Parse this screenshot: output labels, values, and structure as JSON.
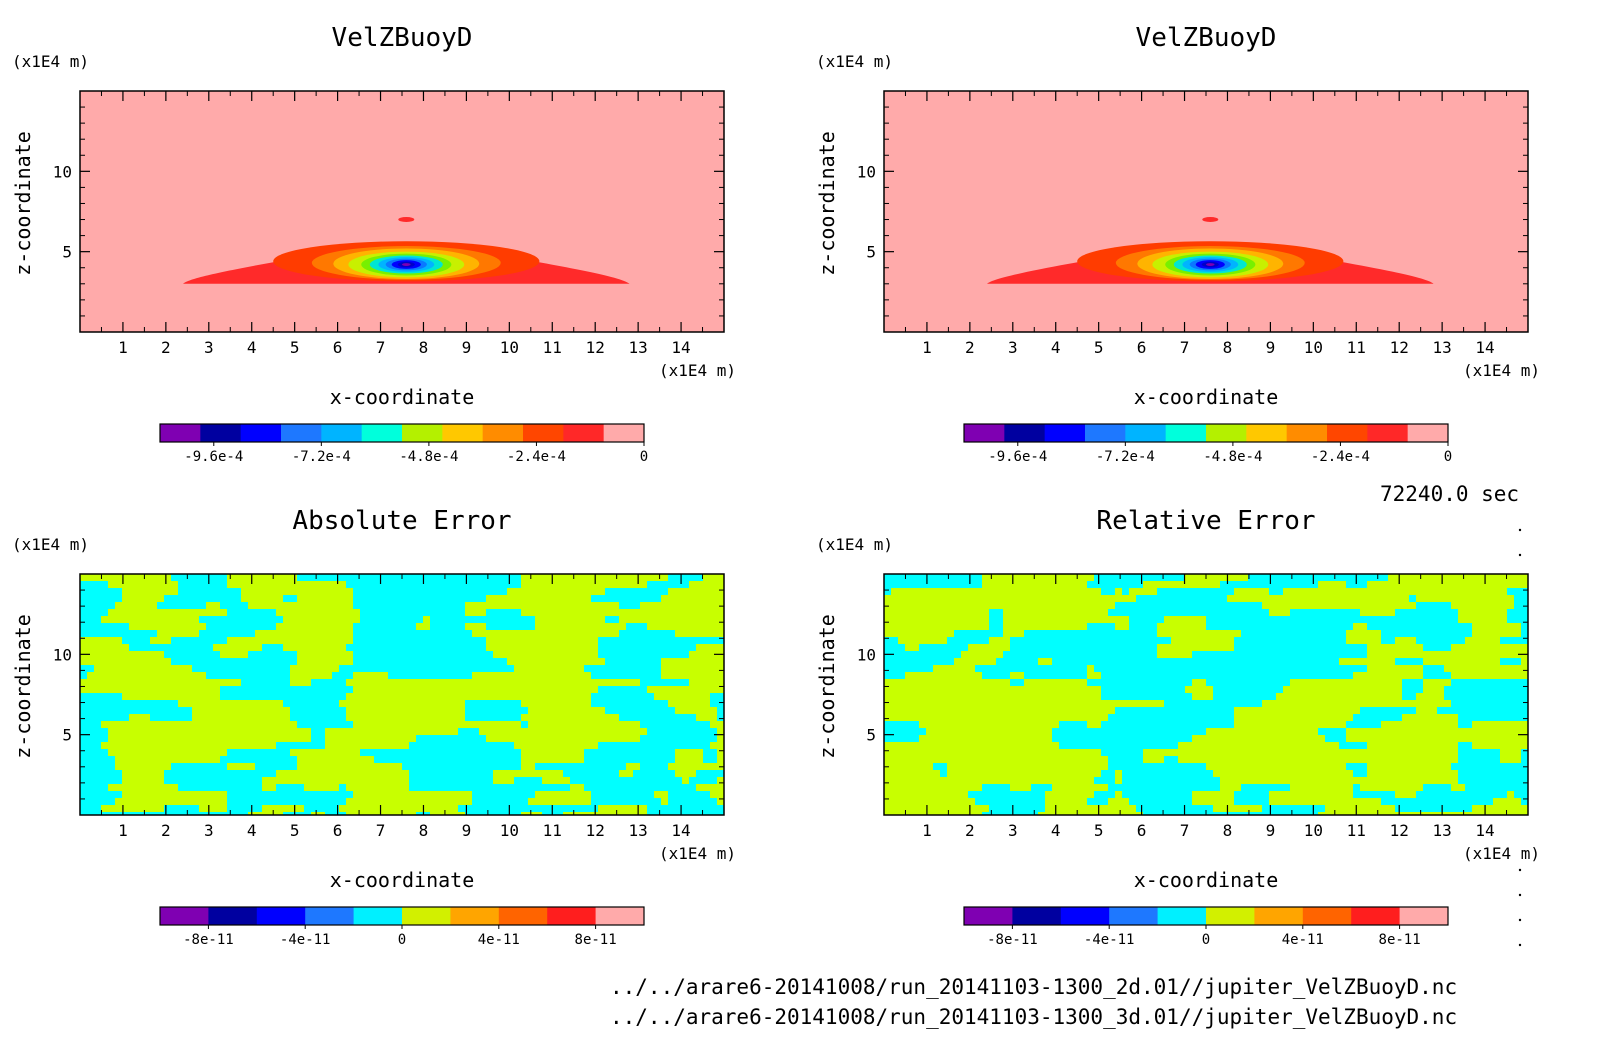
{
  "time_label": "72240.0 sec",
  "files": [
    "../../arare6-20141008/run_20141103-1300_2d.01//jupiter_VelZBuoyD.nc",
    "../../arare6-20141008/run_20141103-1300_3d.01//jupiter_VelZBuoyD.nc"
  ],
  "colors": {
    "velz": [
      "#7f00b2",
      "#0000c8",
      "#0000ff",
      "#0a78ff",
      "#00b4ff",
      "#00e6d2",
      "#78f000",
      "#c8f000",
      "#ffb400",
      "#ff7800",
      "#ff3c00",
      "#ff2a2a",
      "#ffaaaa"
    ],
    "velz_bar": [
      "#7f00b2",
      "#0000a0",
      "#0000ff",
      "#1e78ff",
      "#00b4ff",
      "#00ffdc",
      "#b4f000",
      "#ffc800",
      "#ff8c00",
      "#ff4600",
      "#ff2828",
      "#ffaaaa"
    ],
    "err_bar": [
      "#7f00b2",
      "#0000a0",
      "#0000ff",
      "#1e78ff",
      "#00f0ff",
      "#d2f000",
      "#ffa500",
      "#ff6400",
      "#ff1e1e",
      "#ffaaaa"
    ],
    "err_a": "#c8ff00",
    "err_b": "#00ffff"
  },
  "chart_data": [
    {
      "type": "heatmap",
      "title": "VelZBuoyD",
      "xlabel": "x-coordinate",
      "ylabel": "z-coordinate",
      "x_unit": "(x1E4 m)",
      "y_unit": "(x1E4 m)",
      "x_ticks": [
        "1",
        "2",
        "3",
        "4",
        "5",
        "6",
        "7",
        "8",
        "9",
        "10",
        "11",
        "12",
        "13",
        "14"
      ],
      "y_ticks": [
        "5",
        "10"
      ],
      "xlim": [
        0,
        15
      ],
      "ylim": [
        0,
        15
      ],
      "field": "anomaly",
      "center": [
        7.6,
        4.2
      ],
      "colorbar_ticks": [
        "-9.6e-4",
        "-7.2e-4",
        "-4.8e-4",
        "-2.4e-4",
        "0"
      ],
      "colorbar_range": [
        -0.00108,
        0
      ]
    },
    {
      "type": "heatmap",
      "title": "VelZBuoyD",
      "xlabel": "x-coordinate",
      "ylabel": "z-coordinate",
      "x_unit": "(x1E4 m)",
      "y_unit": "(x1E4 m)",
      "x_ticks": [
        "1",
        "2",
        "3",
        "4",
        "5",
        "6",
        "7",
        "8",
        "9",
        "10",
        "11",
        "12",
        "13",
        "14"
      ],
      "y_ticks": [
        "5",
        "10"
      ],
      "xlim": [
        0,
        15
      ],
      "ylim": [
        0,
        15
      ],
      "field": "anomaly",
      "center": [
        7.6,
        4.2
      ],
      "colorbar_ticks": [
        "-9.6e-4",
        "-7.2e-4",
        "-4.8e-4",
        "-2.4e-4",
        "0"
      ],
      "colorbar_range": [
        -0.00108,
        0
      ]
    },
    {
      "type": "heatmap",
      "title": "Absolute Error",
      "xlabel": "x-coordinate",
      "ylabel": "z-coordinate",
      "x_unit": "(x1E4 m)",
      "y_unit": "(x1E4 m)",
      "x_ticks": [
        "1",
        "2",
        "3",
        "4",
        "5",
        "6",
        "7",
        "8",
        "9",
        "10",
        "11",
        "12",
        "13",
        "14"
      ],
      "y_ticks": [
        "5",
        "10"
      ],
      "xlim": [
        0,
        15
      ],
      "ylim": [
        0,
        15
      ],
      "field": "noise",
      "colorbar_ticks": [
        "-8e-11",
        "-4e-11",
        "0",
        "4e-11",
        "8e-11"
      ],
      "colorbar_range": [
        -1e-10,
        1e-10
      ]
    },
    {
      "type": "heatmap",
      "title": "Relative Error",
      "xlabel": "x-coordinate",
      "ylabel": "z-coordinate",
      "x_unit": "(x1E4 m)",
      "y_unit": "(x1E4 m)",
      "x_ticks": [
        "1",
        "2",
        "3",
        "4",
        "5",
        "6",
        "7",
        "8",
        "9",
        "10",
        "11",
        "12",
        "13",
        "14"
      ],
      "y_ticks": [
        "5",
        "10"
      ],
      "xlim": [
        0,
        15
      ],
      "ylim": [
        0,
        15
      ],
      "field": "noise",
      "colorbar_ticks": [
        "-8e-11",
        "-4e-11",
        "0",
        "4e-11",
        "8e-11"
      ],
      "colorbar_range": [
        -1e-10,
        1e-10
      ]
    }
  ]
}
